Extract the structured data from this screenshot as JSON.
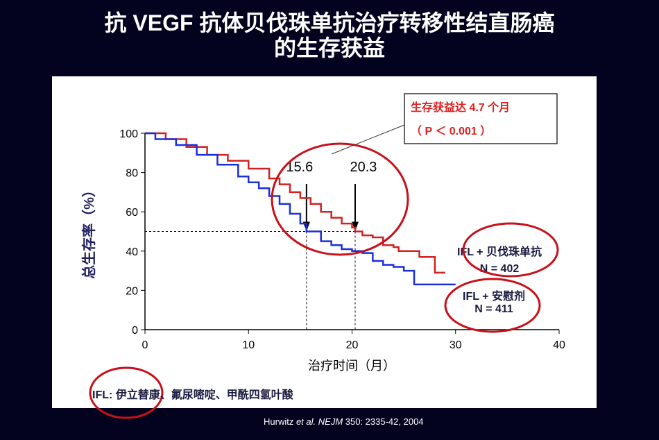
{
  "title_line1": "抗 VEGF 抗体贝伐珠单抗治疗转移性结直肠癌",
  "title_line2": "的生存获益",
  "citation": {
    "author": "Hurwitz ",
    "etal": "et al.",
    "journal": "NEJM",
    "rest": " 350: 2335-42, 2004"
  },
  "callout": {
    "line1": "生存获益达 4.7 个月",
    "line2": "（ P ＜ 0.001 ）"
  },
  "footnote": "IFL:  伊立替康、氟尿嘧啶、甲酰四氢叶酸",
  "chart_data": {
    "type": "line",
    "xlabel": "治疗时间（月）",
    "ylabel": "总生存率（%）",
    "xlim": [
      0,
      40
    ],
    "ylim": [
      0,
      100
    ],
    "xticks": [
      0,
      10,
      20,
      30,
      40
    ],
    "yticks": [
      0,
      20,
      40,
      60,
      80,
      100
    ],
    "medians": [
      {
        "label": "15.6",
        "x": 15.6
      },
      {
        "label": "20.3",
        "x": 20.3
      }
    ],
    "series": [
      {
        "name": "IFL + 贝伐珠单抗",
        "n_label": "N = 402",
        "color": "#d42020",
        "x": [
          0,
          2,
          4,
          6,
          8,
          10,
          12,
          13,
          14,
          15,
          16,
          17,
          18,
          19,
          20,
          20.3,
          21,
          22,
          23,
          24,
          24.5,
          26,
          26.5,
          28,
          28,
          29
        ],
        "y": [
          100,
          97,
          93,
          89,
          86,
          82,
          77,
          74,
          70,
          67,
          64,
          60,
          57,
          54,
          52,
          50,
          48,
          47,
          43,
          42,
          40,
          40,
          37,
          35,
          29,
          29
        ]
      },
      {
        "name": "IFL + 安慰剂",
        "n_label": "N = 411",
        "color": "#1a2ee0",
        "x": [
          0,
          1,
          3,
          5,
          7,
          9,
          10,
          11,
          12,
          13,
          14,
          15,
          15.6,
          17,
          18,
          19,
          20,
          21,
          22,
          23,
          24,
          25,
          26,
          28,
          30
        ],
        "y": [
          100,
          97,
          94,
          89,
          84,
          78,
          75,
          72,
          68,
          64,
          59,
          54,
          50,
          45,
          43,
          41,
          40,
          39,
          35,
          33,
          32,
          30,
          23,
          23,
          23
        ]
      }
    ]
  }
}
